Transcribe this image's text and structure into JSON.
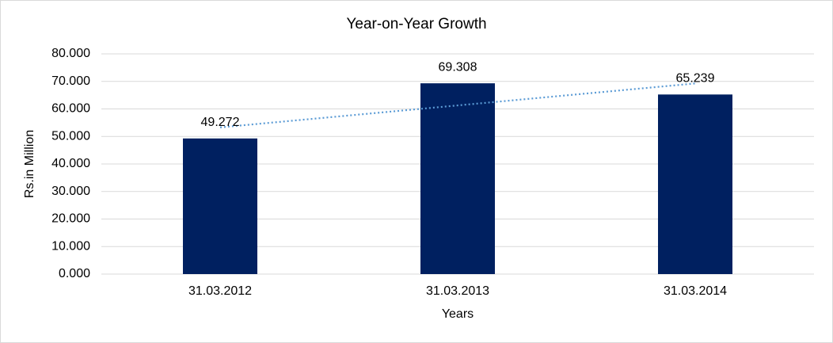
{
  "chart_data": {
    "type": "bar",
    "title": "Year-on-Year Growth",
    "x_label": "Years",
    "y_label": "Rs.in Million",
    "categories": [
      "31.03.2012",
      "31.03.2013",
      "31.03.2014"
    ],
    "values": [
      49.272,
      69.308,
      65.239
    ],
    "color": "#002060",
    "ylim": [
      0,
      80
    ],
    "yticks": [
      {
        "value": 0,
        "label": "0.000"
      },
      {
        "value": 10,
        "label": "10.000"
      },
      {
        "value": 20,
        "label": "20.000"
      },
      {
        "value": 30,
        "label": "30.000"
      },
      {
        "value": 40,
        "label": "40.000"
      },
      {
        "value": 50,
        "label": "50.000"
      },
      {
        "value": 60,
        "label": "60.000"
      },
      {
        "value": 70,
        "label": "70.000"
      },
      {
        "value": 80,
        "label": "80.000"
      }
    ],
    "grid": true,
    "trendline": "linear",
    "trendline_color": "#5b9bd5"
  }
}
